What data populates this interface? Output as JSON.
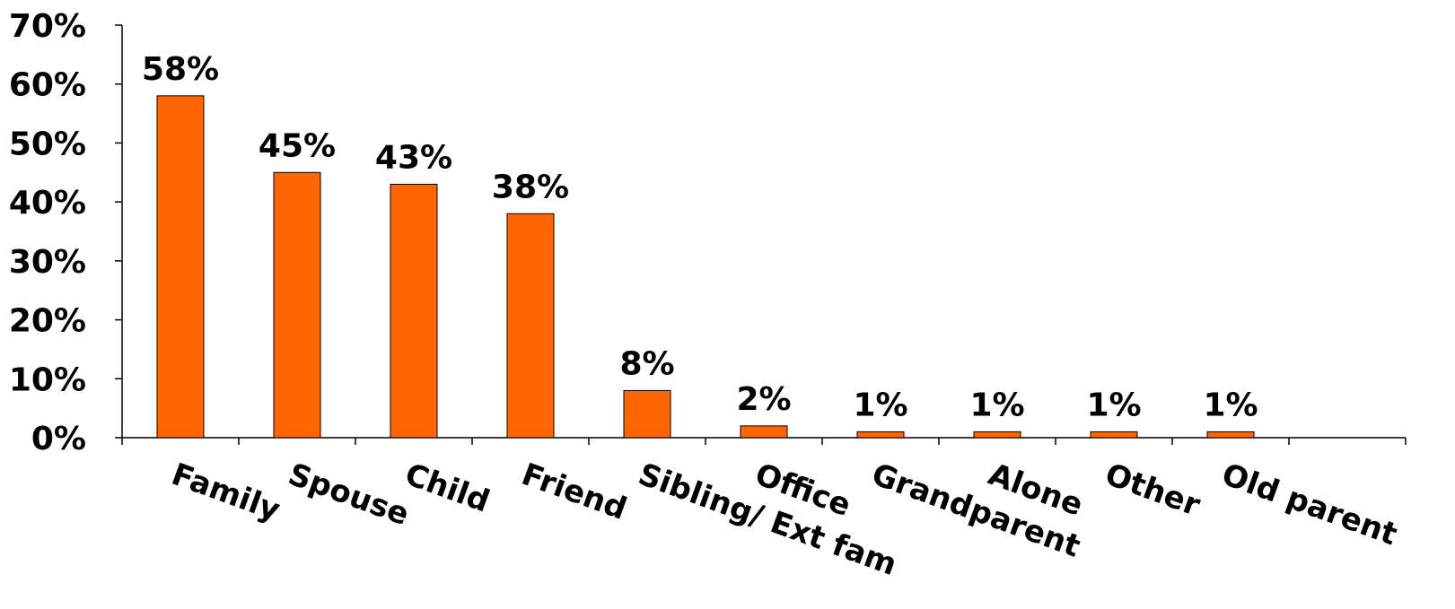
{
  "chart_data": {
    "type": "bar",
    "title": "",
    "xlabel": "",
    "ylabel": "",
    "categories": [
      "Family",
      "Spouse",
      "Child",
      "Friend",
      "Sibling/ Ext fam",
      "Office",
      "Grandparent",
      "Alone",
      "Other",
      "Old parent"
    ],
    "values": [
      58,
      45,
      43,
      38,
      8,
      2,
      1,
      1,
      1,
      1
    ],
    "data_labels": [
      "58%",
      "45%",
      "43%",
      "38%",
      "8%",
      "2%",
      "1%",
      "1%",
      "1%",
      "1%"
    ],
    "y_ticks": [
      0,
      10,
      20,
      30,
      40,
      50,
      60,
      70
    ],
    "y_tick_labels": [
      "0%",
      "10%",
      "20%",
      "30%",
      "40%",
      "50%",
      "60%",
      "70%"
    ],
    "ylim": [
      0,
      70
    ],
    "grid": false,
    "legend": "none",
    "bar_color": "#FF6600"
  }
}
